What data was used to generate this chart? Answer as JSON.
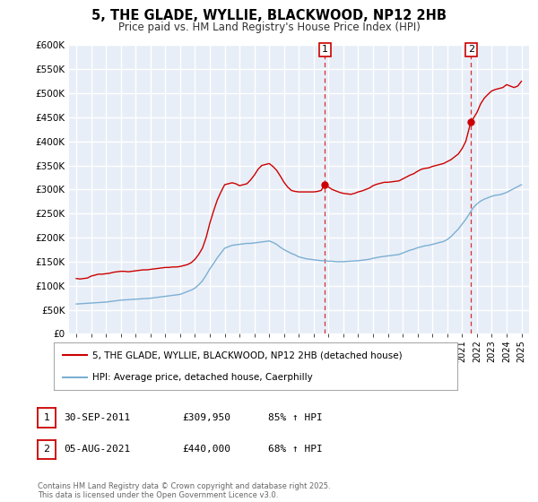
{
  "title": "5, THE GLADE, WYLLIE, BLACKWOOD, NP12 2HB",
  "subtitle": "Price paid vs. HM Land Registry's House Price Index (HPI)",
  "legend_line1": "5, THE GLADE, WYLLIE, BLACKWOOD, NP12 2HB (detached house)",
  "legend_line2": "HPI: Average price, detached house, Caerphilly",
  "annotation1": {
    "label": "1",
    "date_str": "30-SEP-2011",
    "price_str": "£309,950",
    "hpi_str": "85% ↑ HPI",
    "x_year": 2011.75,
    "y_val": 309950
  },
  "annotation2": {
    "label": "2",
    "date_str": "05-AUG-2021",
    "price_str": "£440,000",
    "hpi_str": "68% ↑ HPI",
    "x_year": 2021.6,
    "y_val": 440000
  },
  "footer": "Contains HM Land Registry data © Crown copyright and database right 2025.\nThis data is licensed under the Open Government Licence v3.0.",
  "red_color": "#cc0000",
  "blue_color": "#7bafd4",
  "vline_color": "#cc0000",
  "bg_color": "#e8eef7",
  "grid_color": "#ffffff",
  "ylim": [
    0,
    600000
  ],
  "xlim_start": 1994.5,
  "xlim_end": 2025.5,
  "yticks": [
    0,
    50000,
    100000,
    150000,
    200000,
    250000,
    300000,
    350000,
    400000,
    450000,
    500000,
    550000,
    600000
  ],
  "xticks": [
    1995,
    1996,
    1997,
    1998,
    1999,
    2000,
    2001,
    2002,
    2003,
    2004,
    2005,
    2006,
    2007,
    2008,
    2009,
    2010,
    2011,
    2012,
    2013,
    2014,
    2015,
    2016,
    2017,
    2018,
    2019,
    2020,
    2021,
    2022,
    2023,
    2024,
    2025
  ],
  "red_x": [
    1995.0,
    1995.25,
    1995.5,
    1995.75,
    1996.0,
    1996.25,
    1996.5,
    1996.75,
    1997.0,
    1997.25,
    1997.5,
    1997.75,
    1998.0,
    1998.25,
    1998.5,
    1998.75,
    1999.0,
    1999.25,
    1999.5,
    1999.75,
    2000.0,
    2000.25,
    2000.5,
    2000.75,
    2001.0,
    2001.25,
    2001.5,
    2001.75,
    2002.0,
    2002.25,
    2002.5,
    2002.75,
    2003.0,
    2003.25,
    2003.5,
    2003.75,
    2004.0,
    2004.25,
    2004.5,
    2004.75,
    2005.0,
    2005.25,
    2005.5,
    2005.75,
    2006.0,
    2006.25,
    2006.5,
    2006.75,
    2007.0,
    2007.25,
    2007.5,
    2007.75,
    2008.0,
    2008.25,
    2008.5,
    2008.75,
    2009.0,
    2009.25,
    2009.5,
    2009.75,
    2010.0,
    2010.25,
    2010.5,
    2010.75,
    2011.0,
    2011.25,
    2011.5,
    2011.75,
    2012.0,
    2012.25,
    2012.5,
    2012.75,
    2013.0,
    2013.25,
    2013.5,
    2013.75,
    2014.0,
    2014.25,
    2014.5,
    2014.75,
    2015.0,
    2015.25,
    2015.5,
    2015.75,
    2016.0,
    2016.25,
    2016.5,
    2016.75,
    2017.0,
    2017.25,
    2017.5,
    2017.75,
    2018.0,
    2018.25,
    2018.5,
    2018.75,
    2019.0,
    2019.25,
    2019.5,
    2019.75,
    2020.0,
    2020.25,
    2020.5,
    2020.75,
    2021.0,
    2021.25,
    2021.5,
    2021.6,
    2022.0,
    2022.25,
    2022.5,
    2022.75,
    2023.0,
    2023.25,
    2023.5,
    2023.75,
    2024.0,
    2024.25,
    2024.5,
    2024.75,
    2025.0
  ],
  "red_y": [
    115000,
    114000,
    115000,
    116000,
    120000,
    122000,
    124000,
    124000,
    125000,
    126000,
    128000,
    129000,
    130000,
    130000,
    129000,
    130000,
    131000,
    132000,
    133000,
    133000,
    134000,
    135000,
    136000,
    137000,
    138000,
    138000,
    139000,
    139000,
    140000,
    142000,
    144000,
    148000,
    155000,
    165000,
    178000,
    200000,
    230000,
    255000,
    278000,
    295000,
    310000,
    312000,
    314000,
    312000,
    308000,
    310000,
    312000,
    320000,
    330000,
    342000,
    350000,
    352000,
    354000,
    348000,
    340000,
    328000,
    315000,
    305000,
    298000,
    296000,
    295000,
    295000,
    295000,
    295000,
    295000,
    296000,
    298000,
    309950,
    305000,
    300000,
    297000,
    294000,
    292000,
    291000,
    290000,
    292000,
    295000,
    297000,
    300000,
    303000,
    308000,
    311000,
    313000,
    315000,
    315000,
    316000,
    317000,
    318000,
    322000,
    326000,
    330000,
    333000,
    338000,
    342000,
    344000,
    345000,
    348000,
    350000,
    352000,
    354000,
    358000,
    362000,
    368000,
    374000,
    385000,
    400000,
    430000,
    440000,
    460000,
    478000,
    490000,
    498000,
    505000,
    508000,
    510000,
    512000,
    518000,
    515000,
    512000,
    515000,
    525000
  ],
  "blue_x": [
    1995.0,
    1995.25,
    1995.5,
    1995.75,
    1996.0,
    1996.25,
    1996.5,
    1996.75,
    1997.0,
    1997.25,
    1997.5,
    1997.75,
    1998.0,
    1998.25,
    1998.5,
    1998.75,
    1999.0,
    1999.25,
    1999.5,
    1999.75,
    2000.0,
    2000.25,
    2000.5,
    2000.75,
    2001.0,
    2001.25,
    2001.5,
    2001.75,
    2002.0,
    2002.25,
    2002.5,
    2002.75,
    2003.0,
    2003.25,
    2003.5,
    2003.75,
    2004.0,
    2004.25,
    2004.5,
    2004.75,
    2005.0,
    2005.25,
    2005.5,
    2005.75,
    2006.0,
    2006.25,
    2006.5,
    2006.75,
    2007.0,
    2007.25,
    2007.5,
    2007.75,
    2008.0,
    2008.25,
    2008.5,
    2008.75,
    2009.0,
    2009.25,
    2009.5,
    2009.75,
    2010.0,
    2010.25,
    2010.5,
    2010.75,
    2011.0,
    2011.25,
    2011.5,
    2011.75,
    2012.0,
    2012.25,
    2012.5,
    2012.75,
    2013.0,
    2013.25,
    2013.5,
    2013.75,
    2014.0,
    2014.25,
    2014.5,
    2014.75,
    2015.0,
    2015.25,
    2015.5,
    2015.75,
    2016.0,
    2016.25,
    2016.5,
    2016.75,
    2017.0,
    2017.25,
    2017.5,
    2017.75,
    2018.0,
    2018.25,
    2018.5,
    2018.75,
    2019.0,
    2019.25,
    2019.5,
    2019.75,
    2020.0,
    2020.25,
    2020.5,
    2020.75,
    2021.0,
    2021.25,
    2021.5,
    2021.75,
    2022.0,
    2022.25,
    2022.5,
    2022.75,
    2023.0,
    2023.25,
    2023.5,
    2023.75,
    2024.0,
    2024.25,
    2024.5,
    2024.75,
    2025.0
  ],
  "blue_y": [
    62000,
    62500,
    63000,
    63500,
    64000,
    64500,
    65000,
    65500,
    66000,
    67000,
    68000,
    69000,
    70000,
    70500,
    71000,
    71500,
    72000,
    72500,
    73000,
    73500,
    74000,
    75000,
    76000,
    77000,
    78000,
    79000,
    80000,
    81000,
    82000,
    85000,
    88000,
    91000,
    95000,
    102000,
    110000,
    122000,
    135000,
    146000,
    158000,
    168000,
    178000,
    181000,
    184000,
    185000,
    186000,
    187000,
    188000,
    188000,
    189000,
    190000,
    191000,
    192000,
    193000,
    190000,
    186000,
    180000,
    175000,
    171000,
    167000,
    164000,
    160000,
    158000,
    156000,
    155000,
    154000,
    153000,
    152000,
    152000,
    151000,
    151000,
    150000,
    150000,
    150000,
    150500,
    151000,
    151500,
    152000,
    153000,
    154000,
    155000,
    157000,
    158500,
    160000,
    161000,
    162000,
    163000,
    164000,
    165000,
    168000,
    171000,
    174000,
    176000,
    179000,
    181000,
    183000,
    184000,
    186000,
    188000,
    190000,
    192000,
    196000,
    202000,
    210000,
    218000,
    228000,
    238000,
    250000,
    262000,
    270000,
    276000,
    280000,
    283000,
    286000,
    288000,
    289000,
    291000,
    294000,
    298000,
    302000,
    306000,
    310000
  ]
}
